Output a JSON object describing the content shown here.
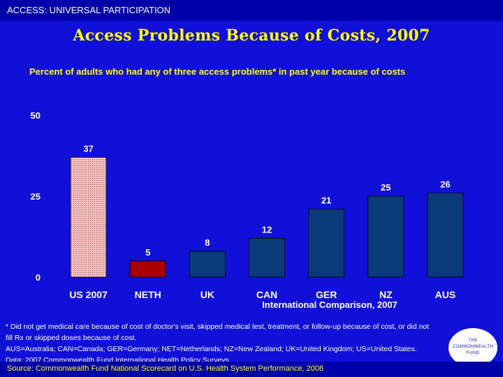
{
  "header": {
    "section_label": "ACCESS: UNIVERSAL PARTICIPATION"
  },
  "title": "Access Problems Because of Costs, 2007",
  "subtitle": "Percent of adults who had any of three access problems* in past year because of costs",
  "colors": {
    "background": "#1010d8",
    "header_bar": "#0000a8",
    "title": "#ffff00",
    "bar_us": "#f0c0c0",
    "bar_neth": "#a80000",
    "bar_others": "#0a3a78"
  },
  "chart_data": {
    "type": "bar",
    "categories": [
      "US 2007",
      "NETH",
      "UK",
      "CAN",
      "GER",
      "NZ",
      "AUS"
    ],
    "values": [
      37,
      5,
      8,
      12,
      21,
      25,
      26
    ],
    "xlabel": "International Comparison, 2007",
    "ylabel": "",
    "ylim": [
      0,
      50
    ],
    "yticks": [
      0,
      25,
      50
    ],
    "grid": false
  },
  "footnote": {
    "lines": [
      "* Did not get medical care because of cost of doctor's visit, skipped medical test, treatment, or follow-up because of cost, or did not",
      "fill Rx or skipped doses because of cost.",
      "AUS=Australia; CAN=Canada; GER=Germany; NET=Netherlands; NZ=New Zealand; UK=United Kingdom; US=United States.",
      "Data: 2007 Commonwealth Fund International Health Policy Surveys."
    ]
  },
  "logo": {
    "line1": "THE",
    "line2": "COMMONWEALTH",
    "line3": "FUND"
  },
  "source": "Source: Commonwealth Fund National Scorecard on U.S. Health System Performance, 2008"
}
